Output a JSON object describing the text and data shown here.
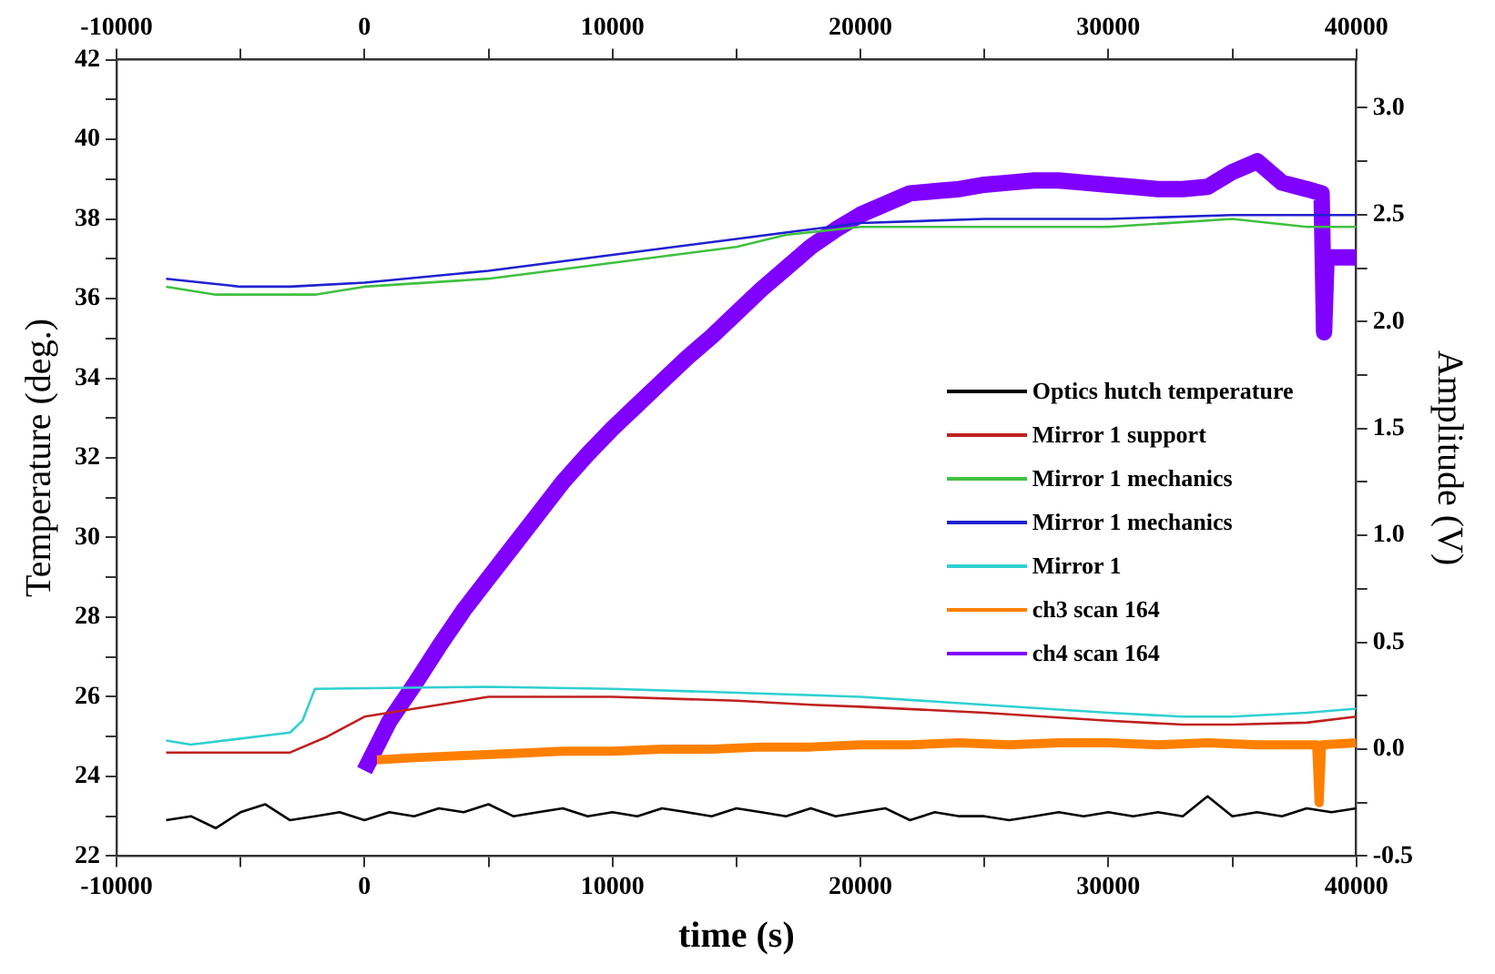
{
  "chart_data": {
    "type": "line",
    "xlabel": "time (s)",
    "ylabel": "Temperature (deg.)",
    "y2label": "Amplitude (V)",
    "xlim": [
      -10000,
      40000
    ],
    "xticks": [
      -10000,
      {
        "value": -5000,
        "label": null
      },
      0,
      {
        "value": 5000,
        "label": null
      },
      10000,
      {
        "value": 15000,
        "label": null
      },
      20000,
      {
        "value": 25000,
        "label": null
      },
      30000,
      {
        "value": 35000,
        "label": null
      },
      40000
    ],
    "x2lim": [
      -10000,
      40000
    ],
    "x2ticks": [
      -10000,
      {
        "value": -5000,
        "label": null
      },
      0,
      {
        "value": 5000,
        "label": null
      },
      10000,
      {
        "value": 15000,
        "label": null
      },
      20000,
      {
        "value": 25000,
        "label": null
      },
      30000,
      {
        "value": 35000,
        "label": null
      },
      40000
    ],
    "ylim": [
      22,
      42
    ],
    "yticks": [
      22,
      {
        "value": 23,
        "label": null
      },
      24,
      {
        "value": 25,
        "label": null
      },
      26,
      {
        "value": 27,
        "label": null
      },
      28,
      {
        "value": 29,
        "label": null
      },
      30,
      {
        "value": 31,
        "label": null
      },
      32,
      {
        "value": 33,
        "label": null
      },
      34,
      {
        "value": 35,
        "label": null
      },
      36,
      {
        "value": 37,
        "label": null
      },
      38,
      {
        "value": 39,
        "label": null
      },
      40,
      {
        "value": 41,
        "label": null
      },
      42
    ],
    "y2lim": [
      -0.5,
      3.225
    ],
    "y2ticks": [
      -0.5,
      {
        "value": -0.25,
        "label": null
      },
      {
        "value": 0,
        "label": "0.0"
      },
      {
        "value": 0.25,
        "label": null
      },
      0.5,
      {
        "value": 0.75,
        "label": null
      },
      {
        "value": 1,
        "label": "1.0"
      },
      {
        "value": 1.25,
        "label": null
      },
      1.5,
      {
        "value": 1.75,
        "label": null
      },
      {
        "value": 2,
        "label": "2.0"
      },
      {
        "value": 2.25,
        "label": null
      },
      2.5,
      {
        "value": 2.75,
        "label": null
      },
      {
        "value": 3,
        "label": "3.0"
      }
    ],
    "grid": false,
    "legend": "right",
    "marker": "none",
    "line_style": "solid",
    "series": [
      {
        "name": "Optics hutch temperature",
        "color": "#000000",
        "x": [
          -8000,
          -7000,
          -6000,
          -5000,
          -4000,
          -3000,
          -2000,
          -1000,
          0,
          1000,
          2000,
          3000,
          4000,
          5000,
          6000,
          7000,
          8000,
          9000,
          10000,
          11000,
          12000,
          13000,
          14000,
          15000,
          16000,
          17000,
          18000,
          19000,
          20000,
          21000,
          22000,
          23000,
          24000,
          25000,
          26000,
          27000,
          28000,
          29000,
          30000,
          31000,
          32000,
          33000,
          34000,
          35000,
          36000,
          37000,
          38000,
          39000,
          40000
        ],
        "values": [
          22.9,
          23.0,
          22.7,
          23.1,
          23.3,
          22.9,
          23.0,
          23.1,
          22.9,
          23.1,
          23.0,
          23.2,
          23.1,
          23.3,
          23.0,
          23.1,
          23.2,
          23.0,
          23.1,
          23.0,
          23.2,
          23.1,
          23.0,
          23.2,
          23.1,
          23.0,
          23.2,
          23.0,
          23.1,
          23.2,
          22.9,
          23.1,
          23.0,
          23.0,
          22.9,
          23.0,
          23.1,
          23.0,
          23.1,
          23.0,
          23.1,
          23.0,
          23.5,
          23.0,
          23.1,
          23.0,
          23.2,
          23.1,
          23.2
        ]
      },
      {
        "name": "Mirror 1 support",
        "color": "#c02020",
        "x": [
          -8000,
          -3000,
          -1500,
          0,
          3000,
          5000,
          10000,
          15000,
          18000,
          20000,
          25000,
          30000,
          33000,
          35000,
          38000,
          40000
        ],
        "values": [
          24.6,
          24.6,
          25.0,
          25.5,
          25.8,
          26.0,
          26.0,
          25.9,
          25.8,
          25.75,
          25.6,
          25.4,
          25.3,
          25.3,
          25.35,
          25.5
        ]
      },
      {
        "name": "Mirror 1 mechanics",
        "color": "#40c040",
        "x": [
          -8000,
          -6000,
          -2000,
          0,
          5000,
          10000,
          15000,
          17000,
          20000,
          25000,
          30000,
          35000,
          38000,
          40000
        ],
        "values": [
          36.3,
          36.1,
          36.1,
          36.3,
          36.5,
          36.9,
          37.3,
          37.6,
          37.8,
          37.8,
          37.8,
          38.0,
          37.8,
          37.8
        ]
      },
      {
        "name": "Mirror 1 mechanics",
        "color": "#2020d0",
        "x": [
          -8000,
          -5000,
          -3000,
          0,
          5000,
          10000,
          15000,
          20000,
          25000,
          30000,
          35000,
          40000
        ],
        "values": [
          36.5,
          36.3,
          36.3,
          36.4,
          36.7,
          37.1,
          37.5,
          37.9,
          38.0,
          38.0,
          38.1,
          38.1
        ]
      },
      {
        "name": "Mirror 1",
        "color": "#30d0d0",
        "x": [
          -8000,
          -7000,
          -3000,
          -2500,
          -2000,
          5000,
          10000,
          15000,
          20000,
          25000,
          30000,
          33000,
          35000,
          38000,
          40000
        ],
        "values": [
          24.9,
          24.8,
          25.1,
          25.4,
          26.2,
          26.25,
          26.2,
          26.1,
          26.0,
          25.8,
          25.6,
          25.5,
          25.5,
          25.6,
          25.7
        ]
      },
      {
        "name": "ch3 scan 164",
        "color": "#ff8000",
        "axis": "y2",
        "x": [
          500,
          2000,
          4000,
          6000,
          8000,
          10000,
          12000,
          14000,
          16000,
          18000,
          20000,
          22000,
          24000,
          26000,
          28000,
          30000,
          32000,
          34000,
          36000,
          38400,
          38500,
          38600,
          40000
        ],
        "values": [
          -0.05,
          -0.04,
          -0.03,
          -0.02,
          -0.01,
          -0.01,
          0.0,
          0.0,
          0.01,
          0.01,
          0.02,
          0.02,
          0.03,
          0.02,
          0.03,
          0.03,
          0.02,
          0.03,
          0.02,
          0.02,
          -0.25,
          0.02,
          0.03
        ]
      },
      {
        "name": "ch4 scan 164",
        "color": "#8000ff",
        "axis": "y2",
        "x": [
          0,
          1000,
          2000,
          3000,
          4000,
          5000,
          6000,
          7000,
          8000,
          9000,
          10000,
          11000,
          12000,
          13000,
          14000,
          15000,
          16000,
          17000,
          18000,
          19000,
          20000,
          21000,
          22000,
          23000,
          24000,
          25000,
          26000,
          27000,
          28000,
          29000,
          30000,
          31000,
          32000,
          33000,
          34000,
          35000,
          36000,
          37000,
          38000,
          38600,
          38700,
          38800,
          40000
        ],
        "values": [
          -0.1,
          0.13,
          0.3,
          0.48,
          0.65,
          0.8,
          0.95,
          1.1,
          1.25,
          1.38,
          1.5,
          1.61,
          1.72,
          1.83,
          1.93,
          2.04,
          2.15,
          2.25,
          2.35,
          2.43,
          2.5,
          2.55,
          2.6,
          2.61,
          2.62,
          2.64,
          2.65,
          2.66,
          2.66,
          2.65,
          2.64,
          2.63,
          2.62,
          2.62,
          2.63,
          2.7,
          2.75,
          2.65,
          2.62,
          2.6,
          1.95,
          2.3,
          2.3
        ]
      }
    ]
  }
}
